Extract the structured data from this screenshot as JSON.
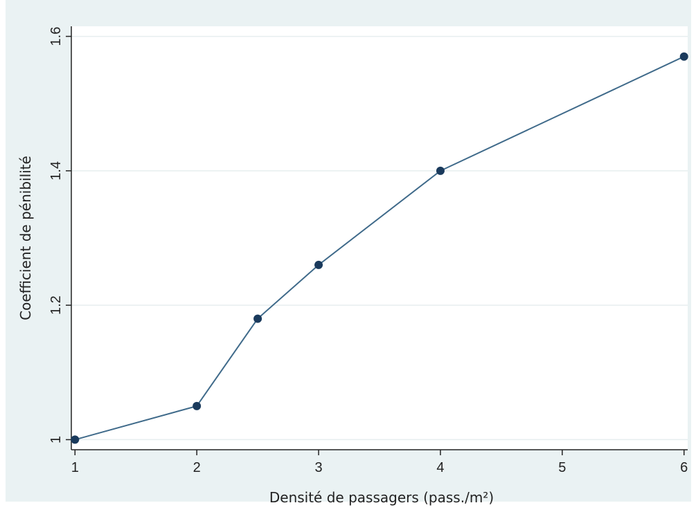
{
  "chart_data": {
    "type": "line",
    "title": "",
    "xlabel": "Densité de passagers (pass./m²)",
    "ylabel": "Coefficient de pénibilité",
    "xlim": [
      0.97,
      6.03
    ],
    "ylim": [
      0.985,
      1.615
    ],
    "x_ticks": [
      1,
      2,
      3,
      4,
      5,
      6
    ],
    "x_tick_labels": [
      "1",
      "2",
      "3",
      "4",
      "5",
      "6"
    ],
    "y_ticks": [
      1,
      1.2,
      1.4,
      1.6
    ],
    "y_tick_labels": [
      "1",
      "1.2",
      "1.4",
      "1.6"
    ],
    "grid": true,
    "legend": "none",
    "series": [
      {
        "x": [
          1,
          2,
          2.5,
          3,
          4,
          6
        ],
        "y": [
          1.0,
          1.05,
          1.18,
          1.26,
          1.4,
          1.57
        ]
      }
    ],
    "colors": {
      "outer_background": "#eaf2f3",
      "plot_background": "#ffffff",
      "grid": "#e6eeef",
      "axis": "#222222",
      "line": "#3f6a8a",
      "marker": "#1a3a5c"
    }
  }
}
